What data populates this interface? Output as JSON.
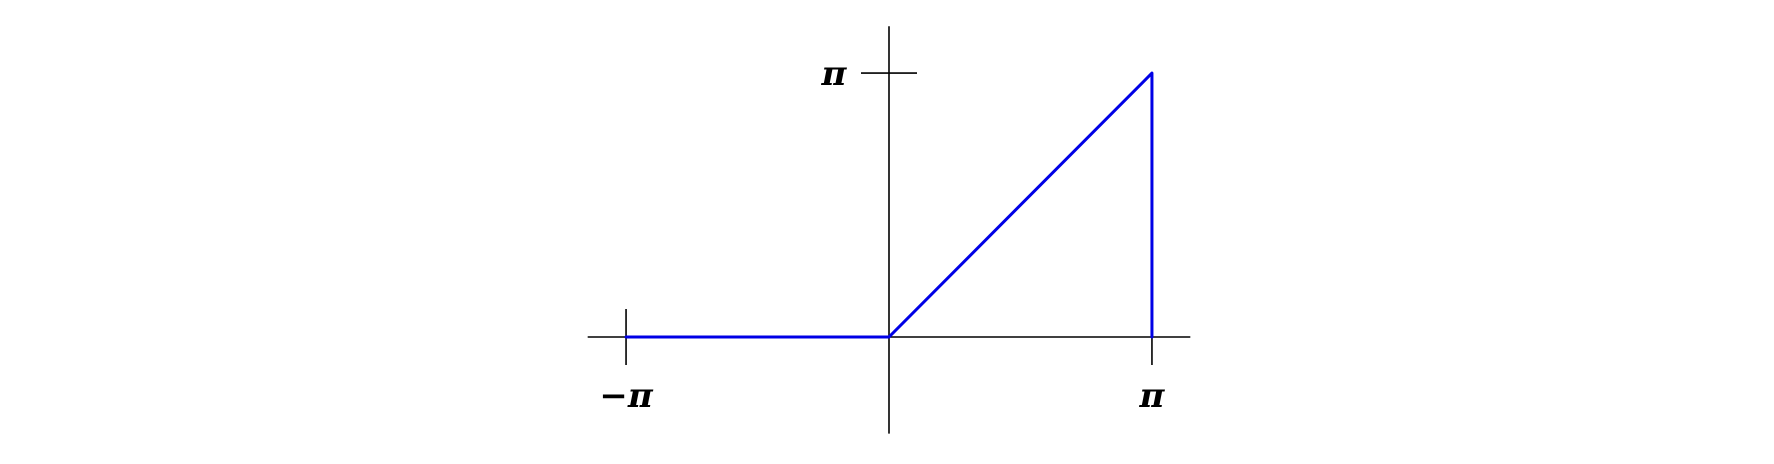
{
  "chart_data": {
    "type": "line",
    "series": [
      {
        "x": [
          -3.14159,
          0,
          3.14159,
          3.14159
        ],
        "y": [
          0,
          0,
          3.14159,
          0
        ],
        "color": "#0000e6"
      }
    ],
    "xlim": [
      -3.6,
      3.6
    ],
    "ylim": [
      -1.15,
      3.7
    ],
    "xticks": [
      {
        "value": -3.14159,
        "label": "−π"
      },
      {
        "value": 3.14159,
        "label": "π"
      }
    ],
    "yticks": [
      {
        "value": 3.14159,
        "label": "π"
      }
    ],
    "grid": false,
    "legend": "none",
    "axis_color": "#000000"
  }
}
